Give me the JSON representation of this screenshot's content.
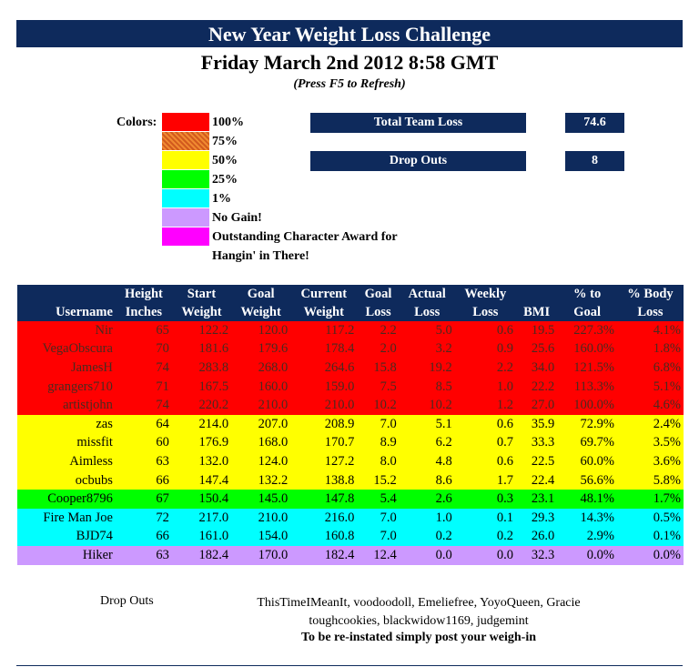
{
  "header": {
    "title": "New Year Weight Loss Challenge",
    "date": "Friday March 2nd 2012 8:58 GMT",
    "refresh_hint": "(Press F5 to Refresh)"
  },
  "legend": {
    "label": "Colors:",
    "items": [
      {
        "text": "100%",
        "color": "#ff0000"
      },
      {
        "text": "75%",
        "color": "#e07020"
      },
      {
        "text": "50%",
        "color": "#ffff00"
      },
      {
        "text": "25%",
        "color": "#00ff00"
      },
      {
        "text": "1%",
        "color": "#00ffff"
      },
      {
        "text": "No Gain!",
        "color": "#cc99ff"
      },
      {
        "text": "Outstanding Character Award for",
        "color": "#ff00ff"
      },
      {
        "text": "Hangin' in There!",
        "color": ""
      }
    ]
  },
  "summary": {
    "total_team_loss_label": "Total Team Loss",
    "total_team_loss_value": "74.6",
    "drop_outs_label": "Drop Outs",
    "drop_outs_value": "8"
  },
  "table": {
    "header_row1": [
      "",
      "Height",
      "Start",
      "Goal",
      "Current",
      "Goal",
      "Actual",
      "Weekly",
      "",
      "% to",
      "% Body"
    ],
    "header_row2": [
      "Username",
      "Inches",
      "Weight",
      "Weight",
      "Weight",
      "Loss",
      "Loss",
      "Loss",
      "BMI",
      "Goal",
      "Loss"
    ],
    "rows": [
      {
        "cls": "c100",
        "cells": [
          "Nir",
          "65",
          "122.2",
          "120.0",
          "117.2",
          "2.2",
          "5.0",
          "0.6",
          "19.5",
          "227.3%",
          "4.1%"
        ]
      },
      {
        "cls": "c100",
        "cells": [
          "VegaObscura",
          "70",
          "181.6",
          "179.6",
          "178.4",
          "2.0",
          "3.2",
          "0.9",
          "25.6",
          "160.0%",
          "1.8%"
        ]
      },
      {
        "cls": "c100",
        "cells": [
          "JamesH",
          "74",
          "283.8",
          "268.0",
          "264.6",
          "15.8",
          "19.2",
          "2.2",
          "34.0",
          "121.5%",
          "6.8%"
        ]
      },
      {
        "cls": "c100",
        "cells": [
          "grangers710",
          "71",
          "167.5",
          "160.0",
          "159.0",
          "7.5",
          "8.5",
          "1.0",
          "22.2",
          "113.3%",
          "5.1%"
        ]
      },
      {
        "cls": "c100",
        "cells": [
          "artistjohn",
          "74",
          "220.2",
          "210.0",
          "210.0",
          "10.2",
          "10.2",
          "1.2",
          "27.0",
          "100.0%",
          "4.6%"
        ]
      },
      {
        "cls": "c50",
        "cells": [
          "zas",
          "64",
          "214.0",
          "207.0",
          "208.9",
          "7.0",
          "5.1",
          "0.6",
          "35.9",
          "72.9%",
          "2.4%"
        ]
      },
      {
        "cls": "c50",
        "cells": [
          "missfit",
          "60",
          "176.9",
          "168.0",
          "170.7",
          "8.9",
          "6.2",
          "0.7",
          "33.3",
          "69.7%",
          "3.5%"
        ]
      },
      {
        "cls": "c50",
        "cells": [
          "Aimless",
          "63",
          "132.0",
          "124.0",
          "127.2",
          "8.0",
          "4.8",
          "0.6",
          "22.5",
          "60.0%",
          "3.6%"
        ]
      },
      {
        "cls": "c50",
        "cells": [
          "ocbubs",
          "66",
          "147.4",
          "132.2",
          "138.8",
          "15.2",
          "8.6",
          "1.7",
          "22.4",
          "56.6%",
          "5.8%"
        ]
      },
      {
        "cls": "c25",
        "cells": [
          "Cooper8796",
          "67",
          "150.4",
          "145.0",
          "147.8",
          "5.4",
          "2.6",
          "0.3",
          "23.1",
          "48.1%",
          "1.7%"
        ]
      },
      {
        "cls": "c1",
        "cells": [
          "Fire Man Joe",
          "72",
          "217.0",
          "210.0",
          "216.0",
          "7.0",
          "1.0",
          "0.1",
          "29.3",
          "14.3%",
          "0.5%"
        ]
      },
      {
        "cls": "c1",
        "cells": [
          "BJD74",
          "66",
          "161.0",
          "154.0",
          "160.8",
          "7.0",
          "0.2",
          "0.2",
          "26.0",
          "2.9%",
          "0.1%"
        ]
      },
      {
        "cls": "cnogain",
        "cells": [
          "Hiker",
          "63",
          "182.4",
          "170.0",
          "182.4",
          "12.4",
          "0.0",
          "0.0",
          "32.3",
          "0.0%",
          "0.0%"
        ]
      }
    ]
  },
  "dropouts": {
    "label": "Drop Outs",
    "names_line1": "ThisTimeIMeanIt, voodoodoll, Emeliefree, YoyoQueen, Gracie",
    "names_line2": "toughcookies, blackwidow1169, judgemint",
    "reinstate_note": "To be re-instated simply post your weigh-in"
  }
}
